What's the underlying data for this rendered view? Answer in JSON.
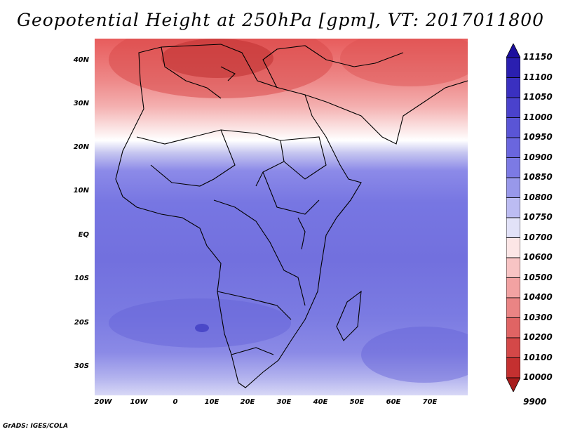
{
  "title": "Geopotential Height at 250hPa [gpm], VT: 2017011800",
  "footer": "GrADS: IGES/COLA",
  "map": {
    "region": "Africa",
    "lon_range": [
      -25,
      80
    ],
    "lat_range": [
      -37,
      45
    ],
    "lat_labels": [
      "40N",
      "30N",
      "20N",
      "10N",
      "EQ",
      "10S",
      "20S",
      "30S"
    ],
    "lon_labels": [
      "20W",
      "10W",
      "0",
      "10E",
      "20E",
      "30E",
      "40E",
      "50E",
      "60E",
      "70E"
    ]
  },
  "colorbar": {
    "levels": [
      "11150",
      "11100",
      "11050",
      "11000",
      "10950",
      "10900",
      "10850",
      "10800",
      "10750",
      "10700",
      "10600",
      "10500",
      "10400",
      "10300",
      "10200",
      "10100",
      "10000",
      "9900"
    ],
    "colors": [
      "#1c0f9e",
      "#2a1fb0",
      "#3a30c0",
      "#4a42cc",
      "#5a55d6",
      "#6a66de",
      "#7c7ae4",
      "#9898ea",
      "#bcbcf2",
      "#e2e2f8",
      "#fce6e6",
      "#f8c4c4",
      "#f2a2a2",
      "#ea8484",
      "#e06464",
      "#d44848",
      "#c43030",
      "#a81c1c"
    ]
  }
}
